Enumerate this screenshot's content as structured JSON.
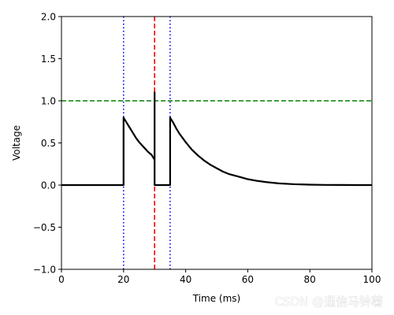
{
  "chart_data": {
    "type": "line",
    "xlabel": "Time (ms)",
    "ylabel": "Voltage",
    "xlim": [
      0,
      100
    ],
    "ylim": [
      -1.0,
      2.0
    ],
    "xticks": [
      0,
      20,
      40,
      60,
      80,
      100
    ],
    "yticks": [
      -1.0,
      -0.5,
      0.0,
      0.5,
      1.0,
      1.5,
      2.0
    ],
    "xtick_labels": [
      "0",
      "20",
      "40",
      "60",
      "80",
      "100"
    ],
    "ytick_labels": [
      "−1.0",
      "−0.5",
      "0.0",
      "0.5",
      "1.0",
      "1.5",
      "2.0"
    ],
    "grid": false,
    "series": [
      {
        "color": "#000000",
        "style": "solid",
        "x": [
          0,
          20,
          20,
          21,
          22,
          23,
          24,
          25,
          26,
          27,
          28,
          29,
          30,
          30,
          30,
          30.5,
          35,
          35,
          36,
          37,
          38,
          39,
          40,
          42,
          44,
          46,
          48,
          50,
          52,
          54,
          56,
          58,
          60,
          63,
          66,
          70,
          75,
          80,
          85,
          90,
          95,
          100
        ],
        "y": [
          0,
          0,
          0.8,
          0.74,
          0.68,
          0.62,
          0.56,
          0.51,
          0.47,
          0.43,
          0.39,
          0.36,
          0.3,
          1.1,
          0,
          0,
          0,
          0.8,
          0.74,
          0.67,
          0.61,
          0.56,
          0.51,
          0.42,
          0.35,
          0.29,
          0.24,
          0.2,
          0.16,
          0.13,
          0.11,
          0.09,
          0.07,
          0.05,
          0.035,
          0.02,
          0.01,
          0.005,
          0.002,
          0.001,
          0,
          0
        ]
      }
    ],
    "reference_lines": [
      {
        "orientation": "vertical",
        "value": 20,
        "color": "#0000ff",
        "style": "dotted"
      },
      {
        "orientation": "vertical",
        "value": 35,
        "color": "#0000ff",
        "style": "dotted"
      },
      {
        "orientation": "vertical",
        "value": 30,
        "color": "#ff0000",
        "style": "dashed"
      },
      {
        "orientation": "horizontal",
        "value": 1.0,
        "color": "#008000",
        "style": "dashed"
      }
    ]
  },
  "watermark": "CSDN @通信马铃薯"
}
